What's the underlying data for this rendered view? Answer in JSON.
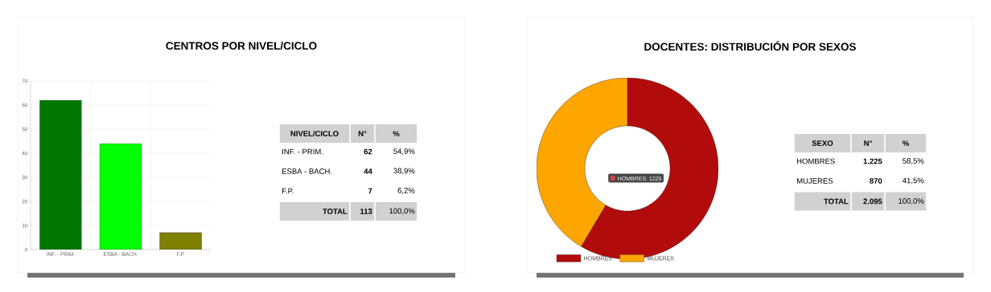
{
  "chart_data": [
    {
      "type": "bar",
      "title": "CENTROS POR NIVEL/CICLO",
      "categories": [
        "INF. - PRIM.",
        "ESBA - BACH.",
        "F.P."
      ],
      "values": [
        62,
        44,
        7
      ],
      "colors": [
        "#007800",
        "#00ff00",
        "#808000"
      ],
      "ylim": [
        0,
        70
      ],
      "yticks": [
        0,
        10,
        20,
        30,
        40,
        50,
        60,
        70
      ],
      "grid": true,
      "annotations": [
        "NIVEL/CICLO",
        "N°",
        "%",
        "62",
        "44",
        "7",
        "54,9%",
        "38,9%",
        "6,2%",
        "TOTAL",
        "113",
        "100,0%"
      ]
    },
    {
      "type": "donut",
      "title": "DOCENTES: DISTRIBUCIÓN POR SEXOS",
      "categories": [
        "HOMBRES",
        "MUJERES"
      ],
      "values": [
        58.5,
        41.5
      ],
      "colors": [
        "#b20b0b",
        "#ffa500"
      ],
      "legend": "bottom",
      "annotations": [
        "SEXO",
        "N°",
        "%",
        "1.225",
        "870",
        "58,5%",
        "41,5%",
        "TOTAL",
        "2.095",
        "100,0%",
        "HOMBRES: 1225"
      ]
    }
  ]
}
